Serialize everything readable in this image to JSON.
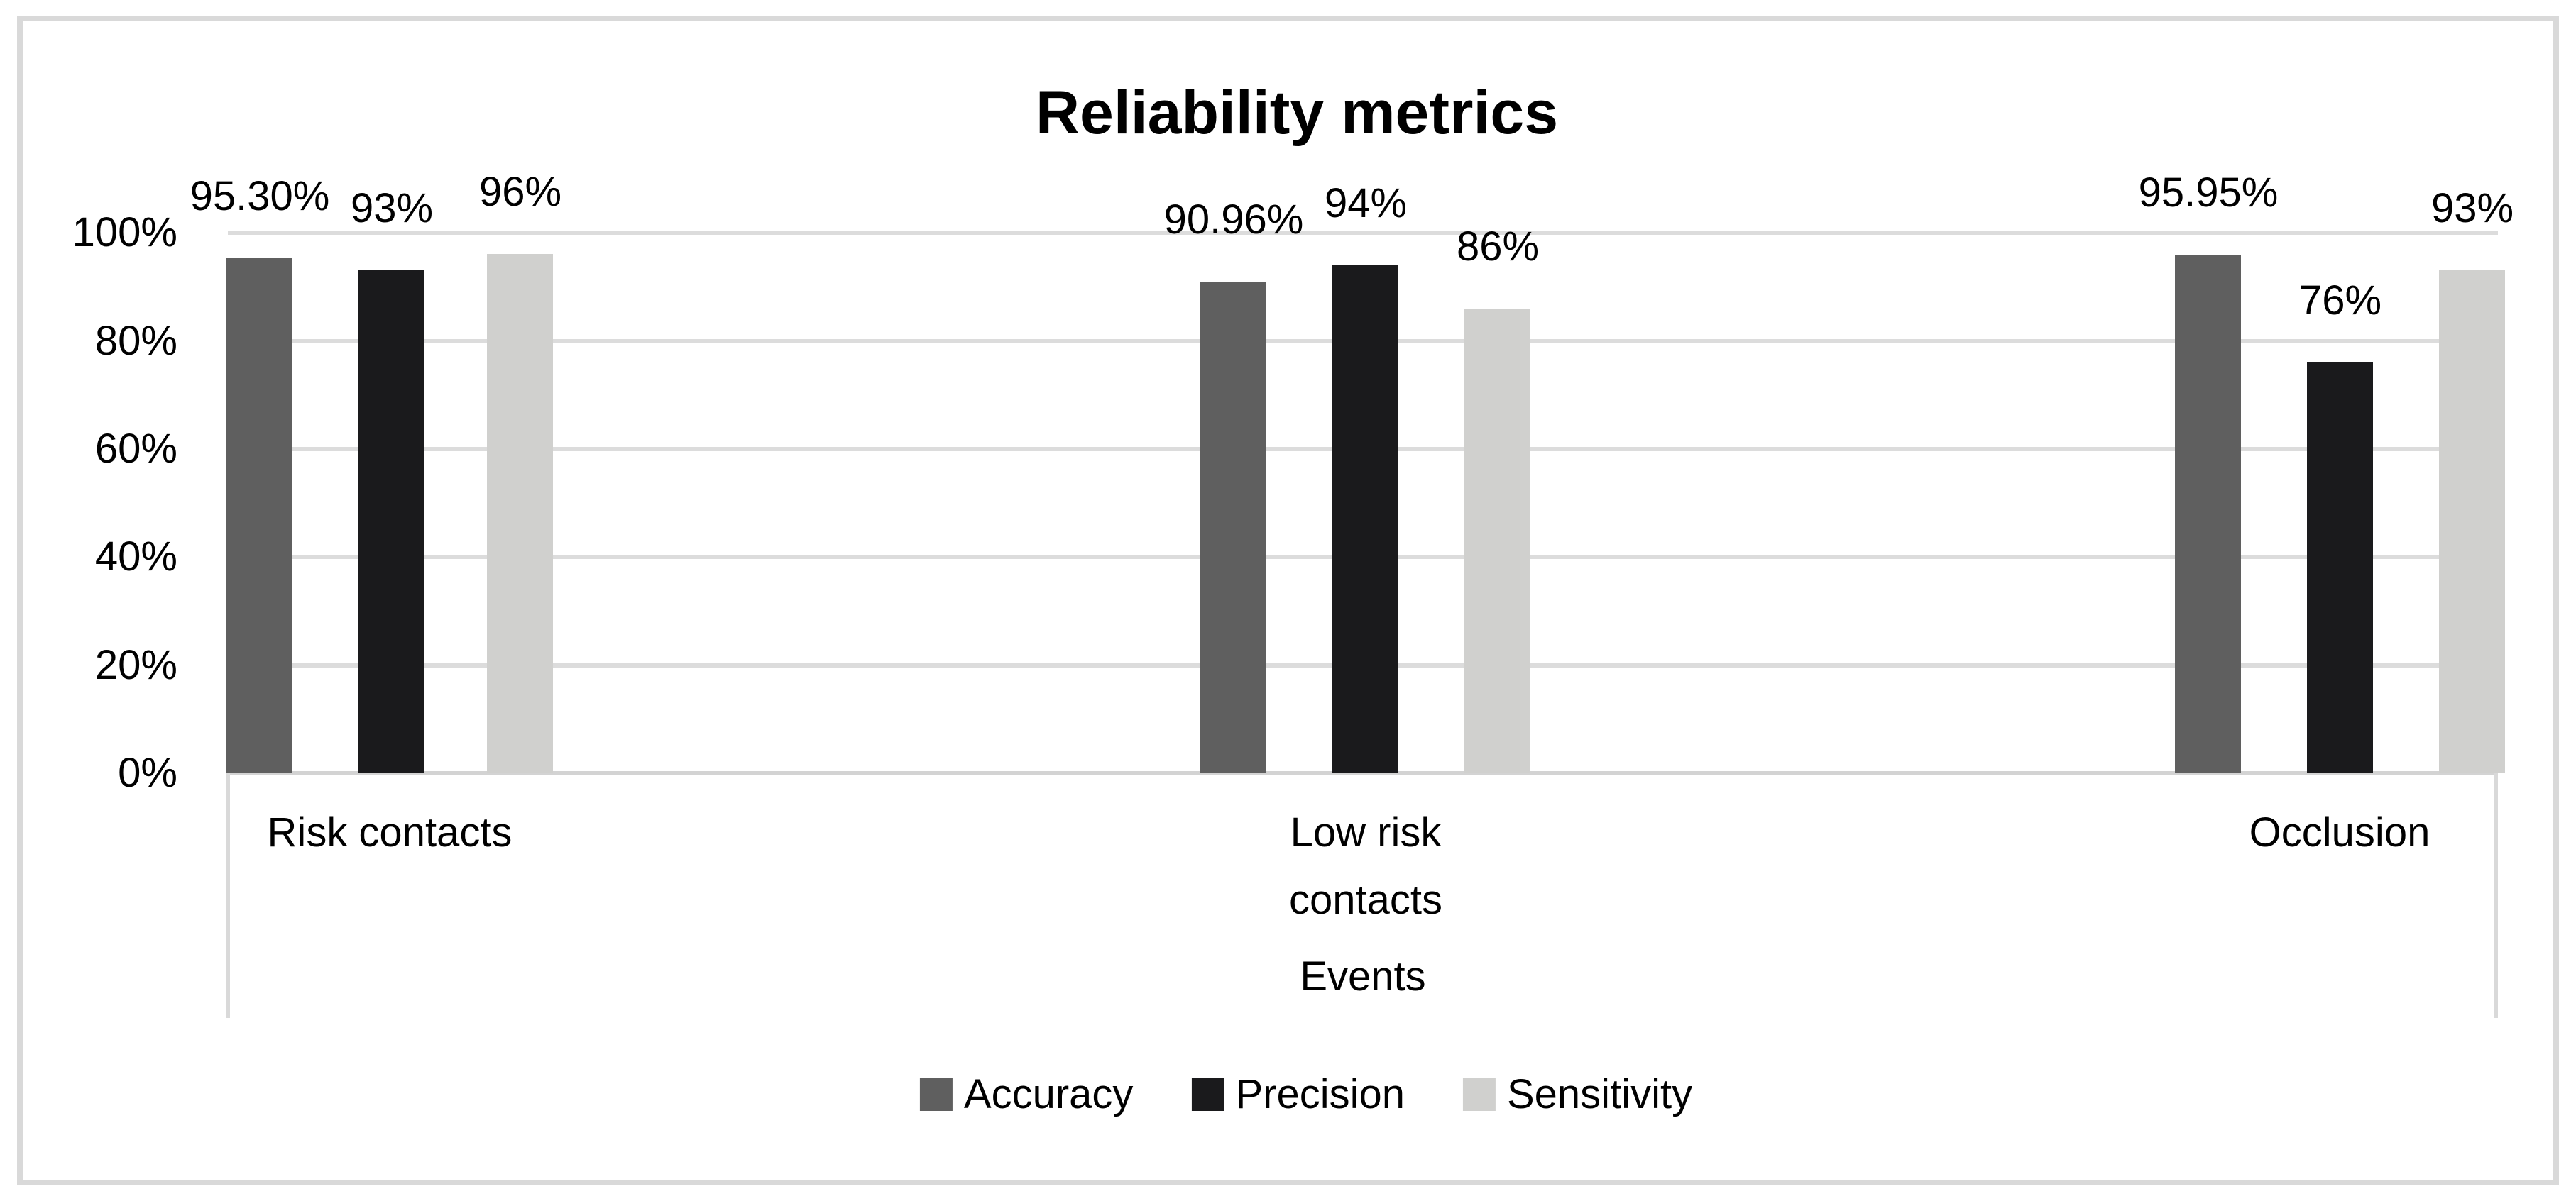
{
  "chart_data": {
    "type": "bar",
    "title": "Reliability metrics",
    "categories": [
      "Risk contacts",
      "Low risk contacts",
      "Occlusion"
    ],
    "series": [
      {
        "name": "Accuracy",
        "color": "#5f5f5f",
        "values": [
          95.3,
          90.96,
          95.95
        ],
        "labels": [
          "95.30%",
          "90.96%",
          "95.95%"
        ]
      },
      {
        "name": "Precision",
        "color": "#1a1a1c",
        "values": [
          93,
          94,
          76
        ],
        "labels": [
          "93%",
          "94%",
          "76%"
        ]
      },
      {
        "name": "Sensitivity",
        "color": "#d0d0ce",
        "values": [
          96,
          86,
          93
        ],
        "labels": [
          "96%",
          "86%",
          "93%"
        ]
      }
    ],
    "xlabel": "Events",
    "ylabel": "",
    "ylim": [
      0,
      100
    ],
    "y_ticks": [
      "100%",
      "80%",
      "60%",
      "40%",
      "20%",
      "0%"
    ],
    "grid": true,
    "gridline_color": "#dcdcdc",
    "legend_position": "bottom"
  }
}
